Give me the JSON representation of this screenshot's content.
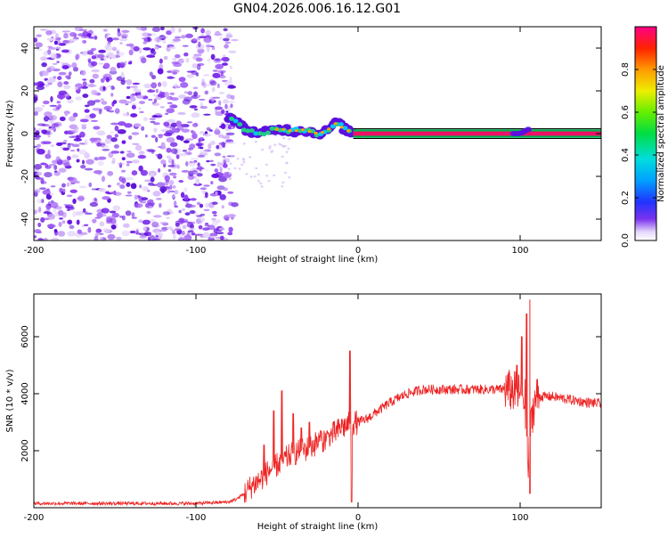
{
  "title": "GN04.2026.006.16.12.G01",
  "colors": {
    "accent_line": "#ee2222",
    "spectrogram_noise": "#7a22dd",
    "colorbar_low": "#ffffff",
    "colorbar_high": "#ff0088"
  },
  "chart_data": [
    {
      "type": "heatmap",
      "title": "GN04.2026.006.16.12.G01",
      "xlabel": "Height of straight line (km)",
      "ylabel": "Frequency (Hz)",
      "xlim": [
        -200,
        150
      ],
      "ylim": [
        -50,
        50
      ],
      "x_ticks": [
        -200,
        -100,
        0,
        100
      ],
      "y_ticks": [
        -40,
        -20,
        0,
        20,
        40
      ],
      "grid": false,
      "description_of_content": "noisy purple speckle from -200 to about -75 km; narrowband signal near 0 Hz from about -80 km to 105 km with a strong constant line from about -3 km onward",
      "signal_track": {
        "x": [
          -80,
          -75,
          -70,
          -65,
          -60,
          -55,
          -50,
          -45,
          -40,
          -35,
          -30,
          -25,
          -20,
          -15,
          -12,
          -10,
          -8,
          -5,
          -3,
          0,
          50,
          100,
          105,
          150
        ],
        "y": [
          8,
          6,
          2,
          1,
          0,
          1,
          2,
          2,
          1,
          2,
          1,
          0,
          1,
          4,
          6,
          3,
          2,
          1,
          0,
          0,
          0,
          0,
          2,
          0
        ]
      },
      "colorbar": {
        "label": "Normalized spectral amplitude",
        "range": [
          0,
          1
        ],
        "ticks": [
          0.0,
          0.2,
          0.4,
          0.6,
          0.8
        ],
        "tick_labels": [
          "0.0",
          "0.2",
          "0.4",
          "0.6",
          "0.8"
        ]
      }
    },
    {
      "type": "line",
      "xlabel": "Height of straight line (km)",
      "ylabel": "SNR (10 * v/v)",
      "xlim": [
        -200,
        150
      ],
      "ylim": [
        0,
        7500
      ],
      "x_ticks": [
        -200,
        -100,
        0,
        100
      ],
      "y_ticks": [
        2000,
        4000,
        6000
      ],
      "grid": false,
      "series": [
        {
          "color": "#ee2222",
          "envelope_x": [
            -200,
            -150,
            -100,
            -80,
            -75,
            -70,
            -65,
            -60,
            -55,
            -50,
            -45,
            -40,
            -35,
            -30,
            -25,
            -20,
            -15,
            -10,
            -5,
            0,
            5,
            10,
            20,
            30,
            40,
            50,
            60,
            70,
            80,
            90,
            95,
            100,
            103,
            105,
            106,
            108,
            110,
            120,
            130,
            140,
            150
          ],
          "envelope_y": [
            150,
            150,
            150,
            200,
            300,
            500,
            800,
            1000,
            1300,
            1500,
            1700,
            1900,
            2000,
            2100,
            2300,
            2400,
            2600,
            2800,
            2950,
            3000,
            3100,
            3300,
            3700,
            4000,
            4150,
            4150,
            4150,
            4150,
            4150,
            4150,
            4100,
            4000,
            3800,
            1200,
            2500,
            3500,
            3900,
            3900,
            3800,
            3700,
            3650
          ],
          "spikes": [
            {
              "x": -58,
              "y": 2200
            },
            {
              "x": -52,
              "y": 3400
            },
            {
              "x": -47,
              "y": 4100
            },
            {
              "x": -40,
              "y": 3300
            },
            {
              "x": -35,
              "y": 2800
            },
            {
              "x": -30,
              "y": 3000
            },
            {
              "x": -23,
              "y": 2700
            },
            {
              "x": -18,
              "y": 2600
            },
            {
              "x": -10,
              "y": 3100
            },
            {
              "x": -5,
              "y": 5500
            },
            {
              "x": 98,
              "y": 5000
            },
            {
              "x": 101,
              "y": 6000
            },
            {
              "x": 104,
              "y": 6800
            },
            {
              "x": 106,
              "y": 7300
            }
          ],
          "dips": [
            {
              "x": -4,
              "y": 200
            },
            {
              "x": 106,
              "y": 500
            }
          ]
        }
      ]
    }
  ]
}
